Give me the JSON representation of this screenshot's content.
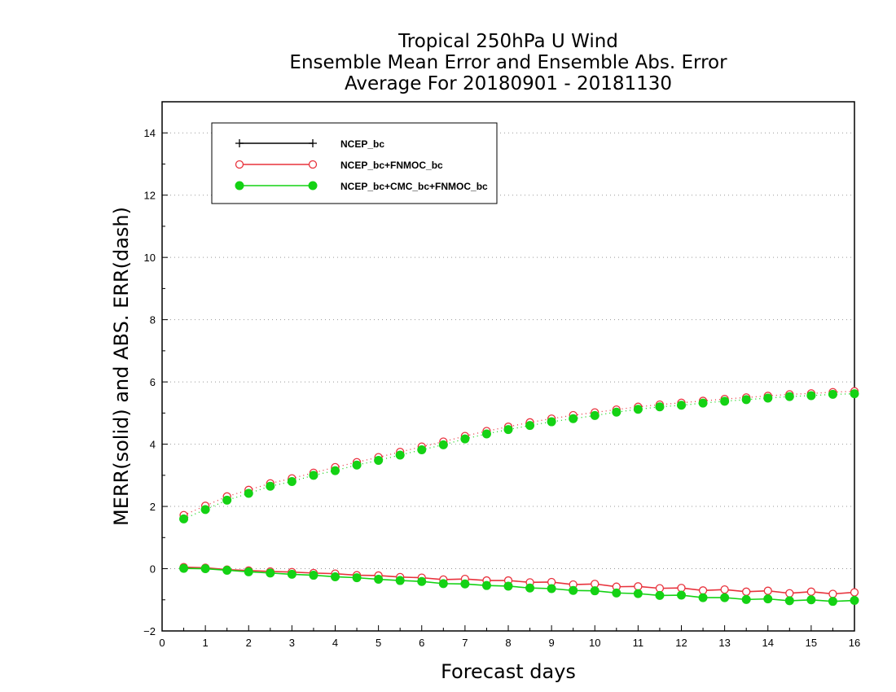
{
  "chart_data": {
    "type": "line",
    "title_lines": [
      "Tropical 250hPa U Wind",
      "Ensemble Mean Error and Ensemble Abs. Error",
      "Average For 20180901 - 20181130"
    ],
    "xlabel": "Forecast days",
    "ylabel": "MERR(solid) and ABS. ERR(dash)",
    "xlim": [
      0,
      16
    ],
    "ylim": [
      -2,
      15
    ],
    "x_ticks": [
      0,
      1,
      2,
      3,
      4,
      5,
      6,
      7,
      8,
      9,
      10,
      11,
      12,
      13,
      14,
      15,
      16
    ],
    "y_ticks": [
      -2,
      0,
      2,
      4,
      6,
      8,
      10,
      12,
      14
    ],
    "grid": "horizontal dotted",
    "legend_position": "top-left",
    "x": [
      0.5,
      1,
      1.5,
      2,
      2.5,
      3,
      3.5,
      4,
      4.5,
      5,
      5.5,
      6,
      6.5,
      7,
      7.5,
      8,
      8.5,
      9,
      9.5,
      10,
      10.5,
      11,
      11.5,
      12,
      12.5,
      13,
      13.5,
      14,
      14.5,
      15,
      15.5,
      16
    ],
    "series": [
      {
        "name": "NCEP_bc",
        "color": "#000000",
        "marker": "plus",
        "merr": [],
        "abs_err": []
      },
      {
        "name": "NCEP_bc+FNMOC_bc",
        "color": "#e8323c",
        "marker": "open-circle",
        "merr": [
          0.05,
          0.03,
          -0.03,
          -0.06,
          -0.09,
          -0.11,
          -0.14,
          -0.16,
          -0.21,
          -0.22,
          -0.27,
          -0.29,
          -0.35,
          -0.33,
          -0.38,
          -0.38,
          -0.44,
          -0.43,
          -0.51,
          -0.49,
          -0.58,
          -0.57,
          -0.63,
          -0.62,
          -0.7,
          -0.67,
          -0.74,
          -0.71,
          -0.79,
          -0.74,
          -0.81,
          -0.76
        ],
        "abs_err": [
          1.72,
          2.02,
          2.32,
          2.53,
          2.74,
          2.9,
          3.08,
          3.26,
          3.42,
          3.58,
          3.75,
          3.92,
          4.08,
          4.26,
          4.42,
          4.56,
          4.7,
          4.82,
          4.93,
          5.02,
          5.11,
          5.2,
          5.27,
          5.33,
          5.39,
          5.45,
          5.5,
          5.55,
          5.6,
          5.63,
          5.67,
          5.7
        ]
      },
      {
        "name": "NCEP_bc+CMC_bc+FNMOC_bc",
        "color": "#14d214",
        "marker": "filled-circle",
        "merr": [
          0.01,
          0.0,
          -0.05,
          -0.1,
          -0.14,
          -0.18,
          -0.21,
          -0.26,
          -0.29,
          -0.34,
          -0.38,
          -0.41,
          -0.48,
          -0.49,
          -0.54,
          -0.56,
          -0.62,
          -0.64,
          -0.7,
          -0.71,
          -0.78,
          -0.8,
          -0.86,
          -0.85,
          -0.93,
          -0.93,
          -0.99,
          -0.97,
          -1.03,
          -1.0,
          -1.05,
          -1.02
        ],
        "abs_err": [
          1.6,
          1.9,
          2.2,
          2.42,
          2.65,
          2.8,
          3.0,
          3.15,
          3.33,
          3.48,
          3.65,
          3.82,
          3.98,
          4.17,
          4.33,
          4.47,
          4.6,
          4.72,
          4.82,
          4.92,
          5.03,
          5.12,
          5.2,
          5.25,
          5.32,
          5.38,
          5.43,
          5.48,
          5.53,
          5.56,
          5.6,
          5.62
        ]
      }
    ]
  }
}
